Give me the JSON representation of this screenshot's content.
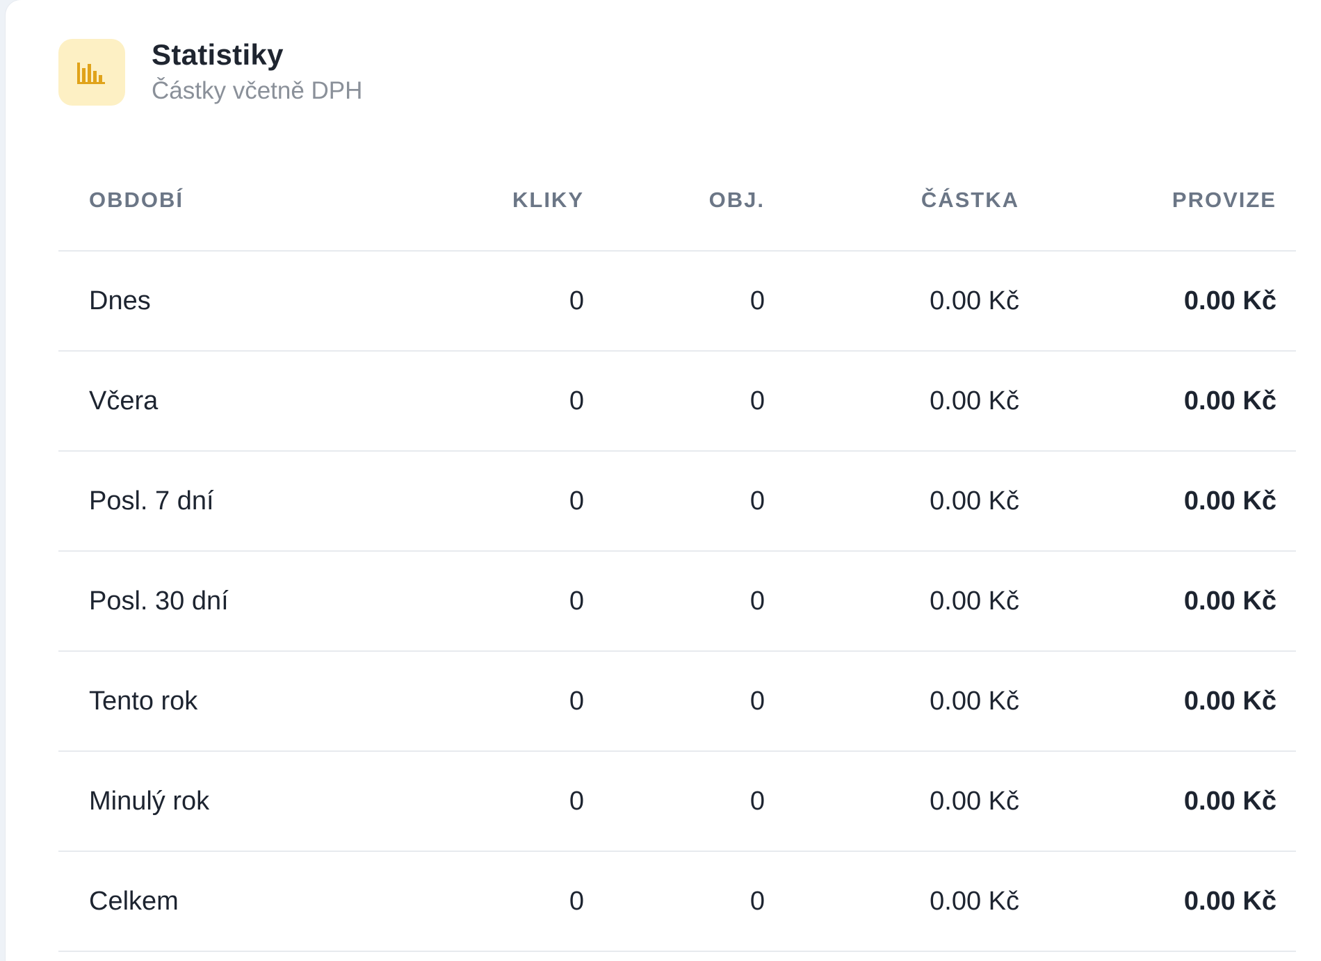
{
  "header": {
    "icon": "bar-chart-icon",
    "title": "Statistiky",
    "subtitle": "Částky včetně DPH"
  },
  "colors": {
    "icon_bg": "#fdf0c4",
    "icon_fg": "#e0a31a",
    "header_text": "#6b7686",
    "divider": "#e7eaee"
  },
  "table": {
    "columns": [
      "OBDOBÍ",
      "KLIKY",
      "OBJ.",
      "ČÁSTKA",
      "PROVIZE"
    ],
    "rows": [
      {
        "period": "Dnes",
        "clicks": "0",
        "orders": "0",
        "amount": "0.00 Kč",
        "commission": "0.00 Kč"
      },
      {
        "period": "Včera",
        "clicks": "0",
        "orders": "0",
        "amount": "0.00 Kč",
        "commission": "0.00 Kč"
      },
      {
        "period": "Posl. 7 dní",
        "clicks": "0",
        "orders": "0",
        "amount": "0.00 Kč",
        "commission": "0.00 Kč"
      },
      {
        "period": "Posl. 30 dní",
        "clicks": "0",
        "orders": "0",
        "amount": "0.00 Kč",
        "commission": "0.00 Kč"
      },
      {
        "period": "Tento rok",
        "clicks": "0",
        "orders": "0",
        "amount": "0.00 Kč",
        "commission": "0.00 Kč"
      },
      {
        "period": "Minulý rok",
        "clicks": "0",
        "orders": "0",
        "amount": "0.00 Kč",
        "commission": "0.00 Kč"
      },
      {
        "period": "Celkem",
        "clicks": "0",
        "orders": "0",
        "amount": "0.00 Kč",
        "commission": "0.00 Kč"
      }
    ]
  }
}
